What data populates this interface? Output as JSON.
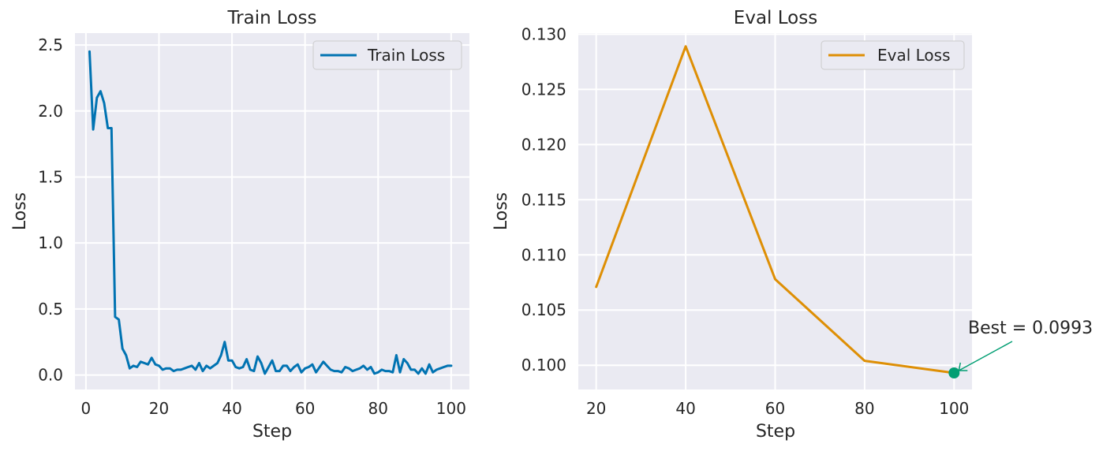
{
  "chart_data": [
    {
      "type": "line",
      "title": "Train Loss",
      "xlabel": "Step",
      "ylabel": "Loss",
      "xlim": [
        -3,
        105
      ],
      "ylim": [
        -0.11,
        2.59
      ],
      "xticks": [
        0,
        20,
        40,
        60,
        80,
        100
      ],
      "xtick_labels": [
        "0",
        "20",
        "40",
        "60",
        "80",
        "100"
      ],
      "yticks": [
        0.0,
        0.5,
        1.0,
        1.5,
        2.0,
        2.5
      ],
      "ytick_labels": [
        "0.0",
        "0.5",
        "1.0",
        "1.5",
        "2.0",
        "2.5"
      ],
      "grid": true,
      "legend": "top-right",
      "series": [
        {
          "name": "Train Loss",
          "color": "#0173b2",
          "x": [
            1,
            2,
            3,
            4,
            5,
            6,
            7,
            8,
            9,
            10,
            11,
            12,
            13,
            14,
            15,
            16,
            17,
            18,
            19,
            20,
            21,
            22,
            23,
            24,
            25,
            26,
            27,
            28,
            29,
            30,
            31,
            32,
            33,
            34,
            35,
            36,
            37,
            38,
            39,
            40,
            41,
            42,
            43,
            44,
            45,
            46,
            47,
            48,
            49,
            50,
            51,
            52,
            53,
            54,
            55,
            56,
            57,
            58,
            59,
            60,
            61,
            62,
            63,
            64,
            65,
            66,
            67,
            68,
            69,
            70,
            71,
            72,
            73,
            74,
            75,
            76,
            77,
            78,
            79,
            80,
            81,
            82,
            83,
            84,
            85,
            86,
            87,
            88,
            89,
            90,
            91,
            92,
            93,
            94,
            95,
            96,
            97,
            98,
            99,
            100
          ],
          "y": [
            2.45,
            1.86,
            2.1,
            2.15,
            2.06,
            1.87,
            1.87,
            0.44,
            0.42,
            0.2,
            0.15,
            0.05,
            0.07,
            0.06,
            0.1,
            0.09,
            0.08,
            0.13,
            0.08,
            0.07,
            0.04,
            0.05,
            0.05,
            0.03,
            0.04,
            0.04,
            0.05,
            0.06,
            0.07,
            0.04,
            0.09,
            0.03,
            0.07,
            0.05,
            0.07,
            0.09,
            0.15,
            0.25,
            0.11,
            0.11,
            0.06,
            0.05,
            0.06,
            0.12,
            0.04,
            0.03,
            0.14,
            0.09,
            0.01,
            0.06,
            0.11,
            0.03,
            0.03,
            0.07,
            0.07,
            0.03,
            0.06,
            0.08,
            0.02,
            0.05,
            0.06,
            0.08,
            0.02,
            0.06,
            0.1,
            0.07,
            0.04,
            0.03,
            0.03,
            0.02,
            0.06,
            0.05,
            0.03,
            0.04,
            0.05,
            0.07,
            0.04,
            0.06,
            0.01,
            0.02,
            0.04,
            0.03,
            0.03,
            0.02,
            0.15,
            0.02,
            0.12,
            0.09,
            0.04,
            0.04,
            0.01,
            0.05,
            0.01,
            0.08,
            0.02,
            0.04,
            0.05,
            0.06,
            0.07,
            0.07
          ]
        }
      ]
    },
    {
      "type": "line",
      "title": "Eval Loss",
      "xlabel": "Step",
      "ylabel": "Loss",
      "xlim": [
        16,
        104
      ],
      "ylim": [
        0.0978,
        0.1301
      ],
      "xticks": [
        20,
        40,
        60,
        80,
        100
      ],
      "xtick_labels": [
        "20",
        "40",
        "60",
        "80",
        "100"
      ],
      "yticks": [
        0.1,
        0.105,
        0.11,
        0.115,
        0.12,
        0.125,
        0.13
      ],
      "ytick_labels": [
        "0.100",
        "0.105",
        "0.110",
        "0.115",
        "0.120",
        "0.125",
        "0.130"
      ],
      "grid": true,
      "legend": "top-right",
      "series": [
        {
          "name": "Eval Loss",
          "color": "#de8f05",
          "x": [
            20,
            40,
            60,
            80,
            100
          ],
          "y": [
            0.1071,
            0.1289,
            0.1078,
            0.1004,
            0.0993
          ]
        }
      ],
      "annotation": {
        "text": "Best = 0.0993",
        "x": 100,
        "y": 0.0993,
        "color": "#029e73"
      }
    }
  ]
}
